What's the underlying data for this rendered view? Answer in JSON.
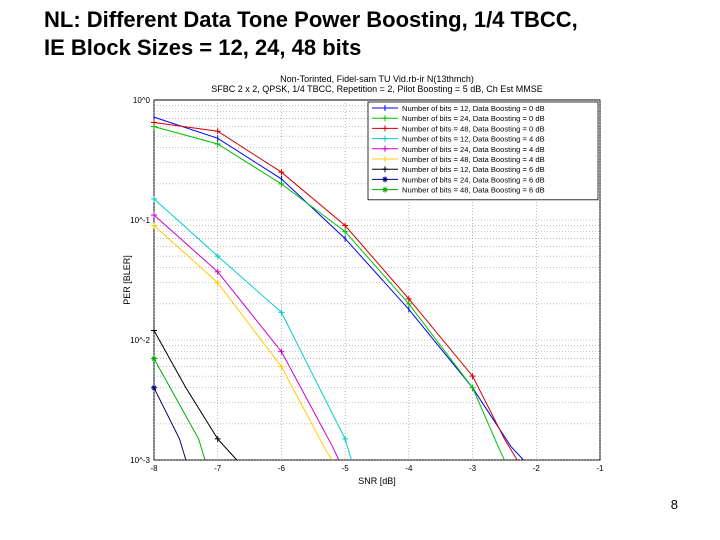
{
  "slide": {
    "title_line1": "NL: Different Data Tone Power Boosting, 1/4 TBCC,",
    "title_line2": "IE Block Sizes = 12, 24, 48 bits",
    "page_number": "8"
  },
  "chart_data": {
    "type": "line",
    "title": "Non-Torinted, Fidel-sam TU Vid.rb-ir N(13thmch)",
    "subtitle": "SFBC 2 x 2, QPSK, 1/4 TBCC, Repetition = 2, Pilot Boosting = 5 dB, Ch Est MMSE",
    "xlabel": "SNR [dB]",
    "ylabel": "PER [BLER]",
    "xlim": [
      -8,
      -1
    ],
    "ylim": [
      0.001,
      1
    ],
    "yscale": "log",
    "xticks": [
      "-8",
      "-7",
      "-6",
      "-5",
      "-4",
      "-3",
      "-2",
      "-1"
    ],
    "yticks": [
      "10^0",
      "10^-1",
      "10^-2",
      "10^-3"
    ],
    "grid": true,
    "legend_position": "top-right",
    "series": [
      {
        "name": "Number of bits = 12, Data Boosting = 0 dB",
        "color": "#0000ff",
        "marker": "|",
        "x": [
          -8,
          -7,
          -6,
          -5,
          -4,
          -3,
          -2.4,
          -2.2
        ],
        "y": [
          0.72,
          0.48,
          0.22,
          0.07,
          0.018,
          0.004,
          0.0013,
          0.001
        ]
      },
      {
        "name": "Number of bits = 24, Data Boosting = 0 dB",
        "color": "#00c000",
        "marker": "+",
        "x": [
          -8,
          -7,
          -6,
          -5,
          -4,
          -3,
          -2.6,
          -2.5
        ],
        "y": [
          0.6,
          0.43,
          0.2,
          0.08,
          0.02,
          0.004,
          0.0013,
          0.001
        ]
      },
      {
        "name": "Number of bits = 48, Data Boosting = 0 dB",
        "color": "#d00000",
        "marker": "+",
        "x": [
          -8,
          -7,
          -6,
          -5,
          -4,
          -3,
          -2.5,
          -2.3
        ],
        "y": [
          0.65,
          0.55,
          0.25,
          0.09,
          0.022,
          0.005,
          0.0015,
          0.001
        ]
      },
      {
        "name": "Number of bits = 12, Data Boosting = 4 dB",
        "color": "#00cccc",
        "marker": "+",
        "x": [
          -8,
          -7,
          -6,
          -5,
          -4.9
        ],
        "y": [
          0.15,
          0.05,
          0.017,
          0.0015,
          0.001
        ]
      },
      {
        "name": "Number of bits = 24, Data Boosting = 4 dB",
        "color": "#cc00cc",
        "marker": "+",
        "x": [
          -8,
          -7,
          -6,
          -5.2,
          -5.1
        ],
        "y": [
          0.11,
          0.037,
          0.008,
          0.0013,
          0.001
        ]
      },
      {
        "name": "Number of bits = 48, Data Boosting = 4 dB",
        "color": "#ffcc00",
        "marker": "+",
        "x": [
          -8,
          -7,
          -6,
          -5.3,
          -5.2
        ],
        "y": [
          0.09,
          0.03,
          0.006,
          0.0012,
          0.001
        ]
      },
      {
        "name": "Number of bits = 12, Data Boosting = 6 dB",
        "color": "#000000",
        "marker": "+",
        "x": [
          -8,
          -7.5,
          -7,
          -6.7
        ],
        "y": [
          0.012,
          0.004,
          0.0015,
          0.001
        ]
      },
      {
        "name": "Number of bits = 24, Data Boosting = 6 dB",
        "color": "#000080",
        "marker": "*",
        "x": [
          -8,
          -7.6,
          -7.5
        ],
        "y": [
          0.004,
          0.0015,
          0.001
        ]
      },
      {
        "name": "Number of bits = 48, Data Boosting = 6 dB",
        "color": "#00aa00",
        "marker": "*",
        "x": [
          -8,
          -7.3,
          -7.2
        ],
        "y": [
          0.007,
          0.0015,
          0.001
        ]
      }
    ]
  }
}
